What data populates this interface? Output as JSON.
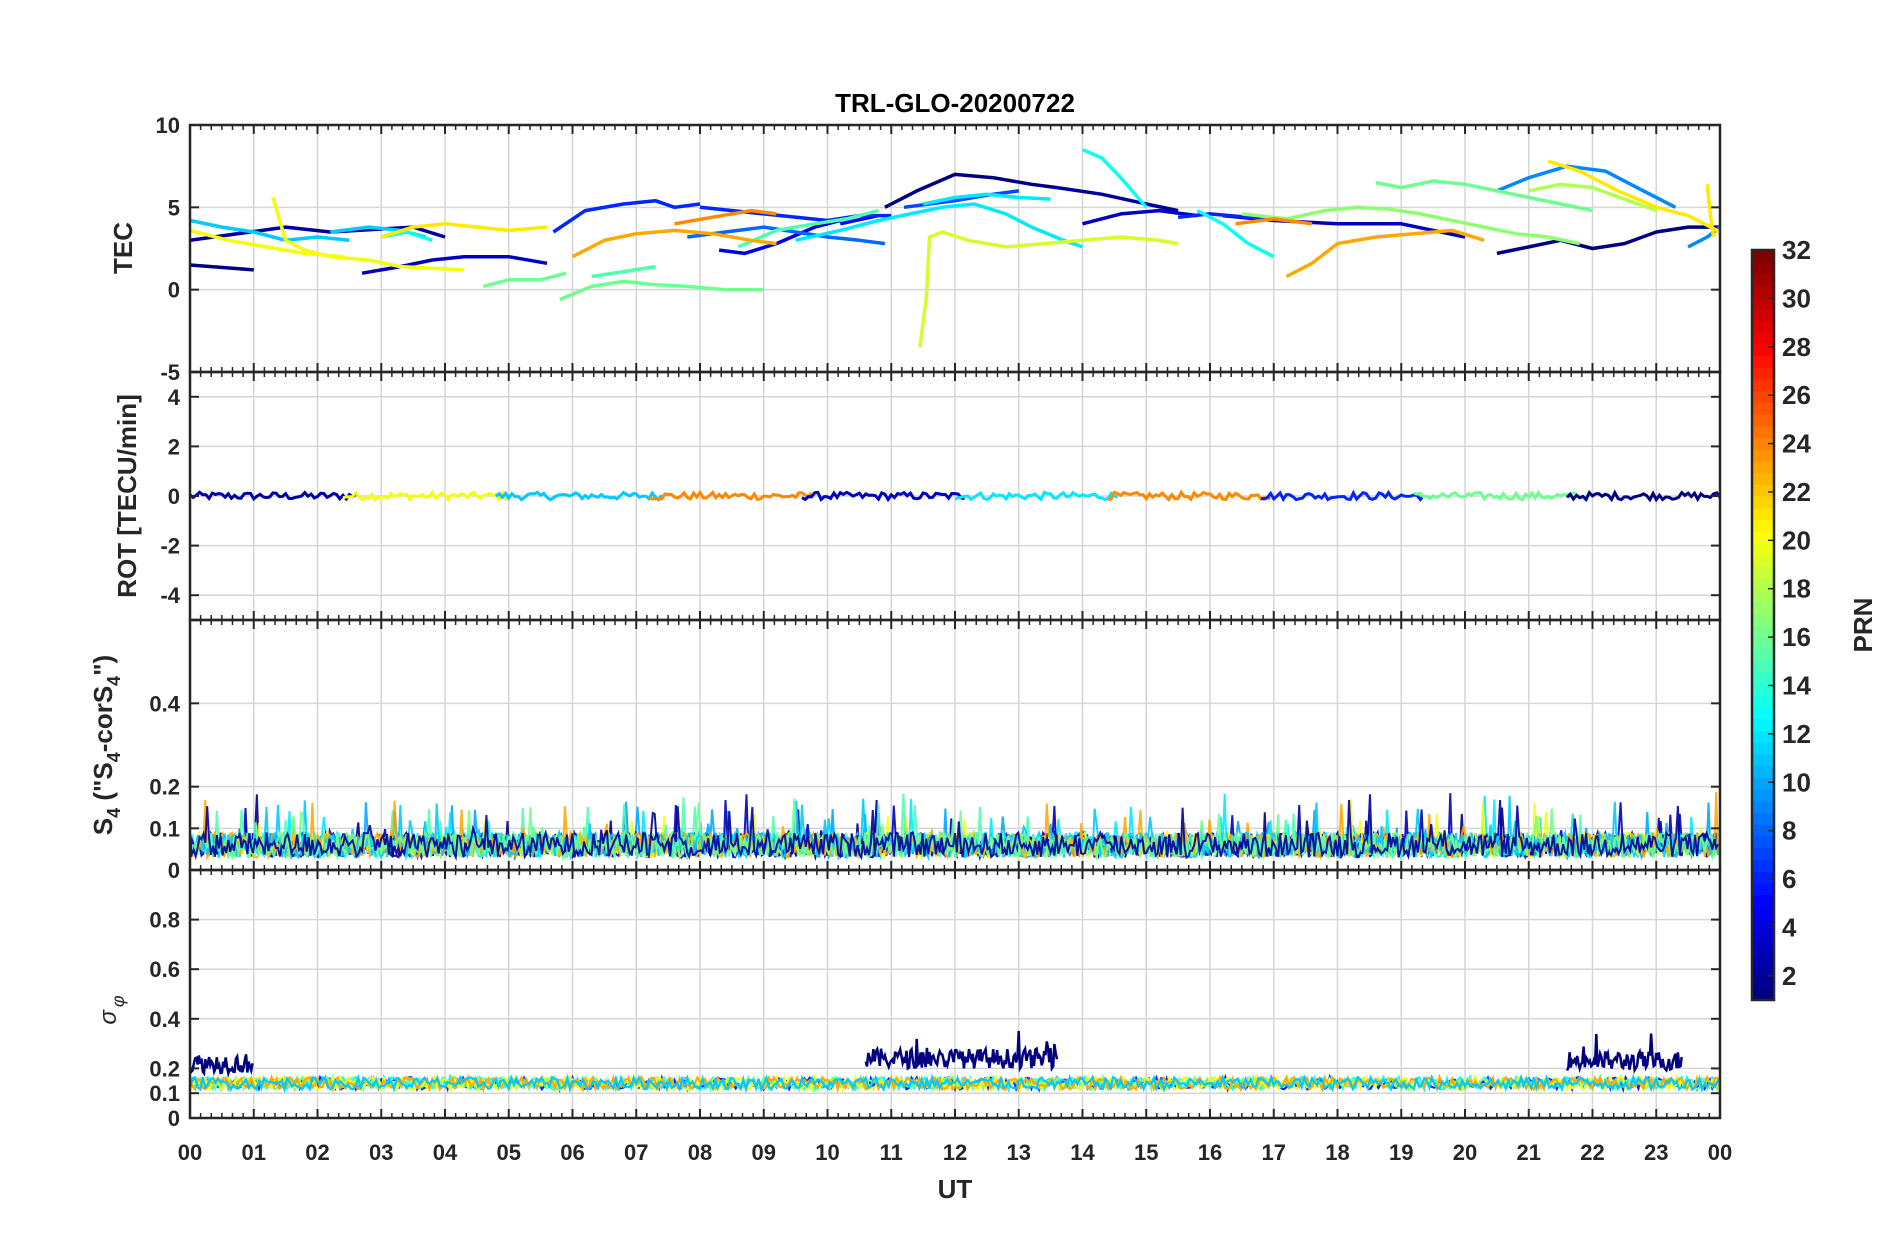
{
  "chart_data": {
    "type": "line",
    "title": "TRL-GLO-20200722",
    "xlabel": "UT",
    "x_ticks": [
      "00",
      "01",
      "02",
      "03",
      "04",
      "05",
      "06",
      "07",
      "08",
      "09",
      "10",
      "11",
      "12",
      "13",
      "14",
      "15",
      "16",
      "17",
      "18",
      "19",
      "20",
      "21",
      "22",
      "23",
      "00"
    ],
    "xlim_hours": [
      0,
      24
    ],
    "colorbar": {
      "label": "PRN",
      "ticks": [
        "2",
        "4",
        "6",
        "8",
        "10",
        "12",
        "14",
        "16",
        "18",
        "20",
        "22",
        "24",
        "26",
        "28",
        "30",
        "32"
      ],
      "range": [
        1,
        32
      ],
      "colormap": "jet"
    },
    "panels": [
      {
        "name": "tec",
        "ylabel": "TEC",
        "ylim": [
          -5,
          10
        ],
        "y_ticks": [
          "-5",
          "0",
          "5",
          "10"
        ],
        "y_tick_values": [
          -5,
          0,
          5,
          10
        ],
        "series": [
          {
            "prn": 1,
            "x": [
              0.0,
              1.0
            ],
            "y": [
              1.5,
              1.2
            ]
          },
          {
            "prn": 2,
            "x": [
              0.0,
              1.5,
              2.2,
              3.5,
              4.0
            ],
            "y": [
              3.0,
              3.8,
              3.5,
              3.8,
              3.2
            ]
          },
          {
            "prn": 3,
            "x": [
              2.7,
              3.3,
              3.8,
              4.3,
              5.0,
              5.6
            ],
            "y": [
              1.0,
              1.4,
              1.8,
              2.0,
              2.0,
              1.6
            ]
          },
          {
            "prn": 1,
            "x": [
              10.9,
              11.4,
              12.0,
              12.6,
              13.2,
              13.6
            ],
            "y": [
              5.0,
              6.0,
              7.0,
              6.8,
              6.4,
              6.2
            ]
          },
          {
            "prn": 2,
            "x": [
              13.6,
              14.3,
              15.0,
              15.5
            ],
            "y": [
              6.2,
              5.8,
              5.2,
              4.8
            ]
          },
          {
            "prn": 3,
            "x": [
              14.0,
              14.6,
              15.2,
              15.8
            ],
            "y": [
              4.0,
              4.6,
              4.8,
              4.5
            ]
          },
          {
            "prn": 3,
            "x": [
              16.2,
              17.0,
              18.0,
              19.0,
              20.0
            ],
            "y": [
              4.5,
              4.2,
              4.0,
              4.0,
              3.2
            ]
          },
          {
            "prn": 1,
            "x": [
              20.5,
              21.0,
              21.5,
              22.0,
              22.5,
              23.0,
              23.5,
              24.0
            ],
            "y": [
              2.2,
              2.6,
              3.0,
              2.5,
              2.8,
              3.5,
              3.8,
              3.8
            ]
          },
          {
            "prn": 4,
            "x": [
              8.3,
              8.7,
              9.2,
              9.8,
              10.2
            ],
            "y": [
              2.4,
              2.2,
              2.8,
              3.8,
              4.2
            ]
          },
          {
            "prn": 5,
            "x": [
              10.2,
              10.8
            ],
            "y": [
              4.0,
              4.5
            ]
          },
          {
            "prn": 6,
            "x": [
              5.7,
              6.2,
              6.8,
              7.3,
              7.6,
              8.0
            ],
            "y": [
              3.5,
              4.8,
              5.2,
              5.4,
              5.0,
              5.2
            ]
          },
          {
            "prn": 6,
            "x": [
              8.0,
              9.0,
              10.0,
              10.5,
              11.0
            ],
            "y": [
              5.0,
              4.6,
              4.2,
              4.5,
              4.5
            ]
          },
          {
            "prn": 7,
            "x": [
              11.2,
              12.0,
              12.6,
              13.0
            ],
            "y": [
              5.0,
              5.4,
              5.8,
              6.0
            ]
          },
          {
            "prn": 6,
            "x": [
              15.5,
              16.0,
              16.6,
              17.2
            ],
            "y": [
              4.4,
              4.6,
              4.4,
              4.2
            ]
          },
          {
            "prn": 8,
            "x": [
              7.8,
              8.4,
              9.0,
              9.5,
              10.0,
              10.5,
              10.9
            ],
            "y": [
              3.2,
              3.5,
              3.8,
              3.5,
              3.2,
              3.0,
              2.8
            ]
          },
          {
            "prn": 9,
            "x": [
              20.5,
              21.0,
              21.6,
              22.2,
              22.8,
              23.3
            ],
            "y": [
              6.0,
              6.8,
              7.5,
              7.2,
              6.0,
              5.0
            ]
          },
          {
            "prn": 9,
            "x": [
              23.5,
              23.8,
              24.0
            ],
            "y": [
              2.6,
              3.2,
              3.8
            ]
          },
          {
            "prn": 11,
            "x": [
              0.0,
              0.5,
              1.0,
              1.5,
              2.0,
              2.5
            ],
            "y": [
              4.2,
              3.8,
              3.5,
              3.0,
              3.2,
              3.0
            ]
          },
          {
            "prn": 11,
            "x": [
              2.2,
              2.8,
              3.3,
              3.7
            ],
            "y": [
              3.5,
              3.8,
              3.6,
              3.2
            ]
          },
          {
            "prn": 12,
            "x": [
              9.5,
              10.2,
              10.8,
              11.3,
              11.8,
              12.3,
              12.8,
              13.2,
              13.7,
              14.0
            ],
            "y": [
              3.0,
              3.6,
              4.2,
              4.6,
              5.0,
              5.2,
              4.6,
              3.8,
              3.0,
              2.6
            ]
          },
          {
            "prn": 12,
            "x": [
              11.5,
              12.0,
              12.5,
              13.0,
              13.5
            ],
            "y": [
              5.2,
              5.6,
              5.8,
              5.6,
              5.5
            ]
          },
          {
            "prn": 13,
            "x": [
              14.0,
              14.3,
              14.6,
              15.0
            ],
            "y": [
              8.5,
              8.0,
              6.8,
              5.0
            ]
          },
          {
            "prn": 13,
            "x": [
              15.8,
              16.2,
              16.6,
              17.0
            ],
            "y": [
              4.8,
              4.0,
              2.8,
              2.0
            ]
          },
          {
            "prn": 13,
            "x": [
              3.0,
              3.4,
              3.8
            ],
            "y": [
              3.2,
              3.5,
              3.0
            ]
          },
          {
            "prn": 16,
            "x": [
              4.6,
              5.0,
              5.5,
              5.9
            ],
            "y": [
              0.2,
              0.6,
              0.6,
              1.0
            ]
          },
          {
            "prn": 16,
            "x": [
              5.8,
              6.3,
              6.8,
              7.3,
              7.8,
              8.4,
              9.0
            ],
            "y": [
              -0.6,
              0.2,
              0.5,
              0.3,
              0.2,
              0.0,
              0.0
            ]
          },
          {
            "prn": 15,
            "x": [
              6.3,
              6.8,
              7.3
            ],
            "y": [
              0.8,
              1.1,
              1.4
            ]
          },
          {
            "prn": 16,
            "x": [
              18.6,
              19.0,
              19.5,
              20.0,
              20.5,
              21.0,
              21.5,
              22.0
            ],
            "y": [
              6.5,
              6.2,
              6.6,
              6.4,
              6.0,
              5.6,
              5.2,
              4.8
            ]
          },
          {
            "prn": 15,
            "x": [
              8.6,
              9.2,
              9.8,
              10.3,
              10.8
            ],
            "y": [
              2.6,
              3.6,
              4.0,
              4.3,
              4.8
            ]
          },
          {
            "prn": 17,
            "x": [
              16.5,
              17.2,
              17.8,
              18.3,
              18.8,
              19.3,
              19.8,
              20.3,
              20.8,
              21.3,
              21.8
            ],
            "y": [
              4.6,
              4.3,
              4.8,
              5.0,
              4.9,
              4.6,
              4.2,
              3.8,
              3.4,
              3.2,
              2.8
            ]
          },
          {
            "prn": 18,
            "x": [
              21.0,
              21.5,
              22.0,
              22.5,
              23.0
            ],
            "y": [
              6.0,
              6.4,
              6.2,
              5.5,
              4.8
            ]
          },
          {
            "prn": 19,
            "x": [
              11.45,
              11.55,
              11.6,
              11.8,
              12.2,
              12.8,
              13.4,
              14.0,
              14.6,
              15.2,
              15.5
            ],
            "y": [
              -3.5,
              -0.5,
              3.2,
              3.5,
              3.0,
              2.6,
              2.8,
              3.0,
              3.2,
              3.0,
              2.8
            ]
          },
          {
            "prn": 20,
            "x": [
              1.3,
              1.5,
              1.8,
              2.2,
              2.8,
              3.3,
              3.8,
              4.3
            ],
            "y": [
              5.6,
              3.0,
              2.4,
              2.0,
              1.8,
              1.4,
              1.3,
              1.2
            ]
          },
          {
            "prn": 20,
            "x": [
              0.0,
              0.6,
              1.2,
              1.8,
              2.4
            ],
            "y": [
              3.6,
              3.0,
              2.6,
              2.2,
              2.0
            ]
          },
          {
            "prn": 21,
            "x": [
              3.0,
              3.5,
              4.0,
              4.5,
              5.0,
              5.6
            ],
            "y": [
              3.2,
              3.8,
              4.0,
              3.8,
              3.6,
              3.8
            ]
          },
          {
            "prn": 21,
            "x": [
              21.3,
              21.8,
              22.4,
              23.0,
              23.5,
              24.0
            ],
            "y": [
              7.8,
              7.2,
              6.0,
              5.0,
              4.5,
              3.5
            ]
          },
          {
            "prn": 21,
            "x": [
              23.8,
              23.85,
              23.9
            ],
            "y": [
              6.4,
              4.5,
              3.2
            ]
          },
          {
            "prn": 23,
            "x": [
              6.0,
              6.5,
              7.0,
              7.6,
              8.2,
              8.8,
              9.2
            ],
            "y": [
              2.0,
              3.0,
              3.4,
              3.6,
              3.4,
              3.0,
              2.8
            ]
          },
          {
            "prn": 24,
            "x": [
              7.6,
              8.2,
              8.8,
              9.2
            ],
            "y": [
              4.0,
              4.4,
              4.8,
              4.6
            ]
          },
          {
            "prn": 23,
            "x": [
              17.2,
              17.6,
              18.0,
              18.6,
              19.2,
              19.8,
              20.3
            ],
            "y": [
              0.8,
              1.6,
              2.8,
              3.2,
              3.4,
              3.6,
              3.0
            ]
          },
          {
            "prn": 24,
            "x": [
              16.4,
              17.0,
              17.6
            ],
            "y": [
              4.0,
              4.3,
              4.0
            ]
          }
        ]
      },
      {
        "name": "rot",
        "ylabel": "ROT [TECU/min]",
        "ylim": [
          -5,
          5
        ],
        "y_ticks": [
          "-4",
          "-2",
          "0",
          "2",
          "4"
        ],
        "y_tick_values": [
          -4,
          -2,
          0,
          2,
          4
        ],
        "baseline": 0.0,
        "noise_amplitude": 0.15
      },
      {
        "name": "s4",
        "ylabel_main": "S",
        "ylabel_sub": "4",
        "ylabel_mid": " (\"S",
        "ylabel_sub2": "4",
        "ylabel_end": "-corS",
        "ylabel_sub3": "4",
        "ylabel_tail": "\")",
        "ylim": [
          0,
          0.6
        ],
        "y_ticks": [
          "0",
          "0.1",
          "0.2",
          "0.4"
        ],
        "y_tick_values": [
          0,
          0.1,
          0.2,
          0.4
        ],
        "baseline": 0.03,
        "peak_max": 0.19
      },
      {
        "name": "sigma_phi",
        "ylabel_main": "σ",
        "ylabel_sub": "φ",
        "ylim": [
          0,
          1
        ],
        "y_ticks": [
          "0",
          "0.1",
          "0.2",
          "0.4",
          "0.6",
          "0.8"
        ],
        "y_tick_values": [
          0,
          0.1,
          0.2,
          0.4,
          0.6,
          0.8
        ],
        "baseline": 0.14,
        "elevated_periods": [
          {
            "prn": 1,
            "start": 0.0,
            "end": 1.0,
            "level": 0.22
          },
          {
            "prn": 1,
            "start": 10.6,
            "end": 13.6,
            "level": 0.24
          },
          {
            "prn": 1,
            "start": 21.6,
            "end": 23.4,
            "level": 0.23
          }
        ]
      }
    ]
  }
}
